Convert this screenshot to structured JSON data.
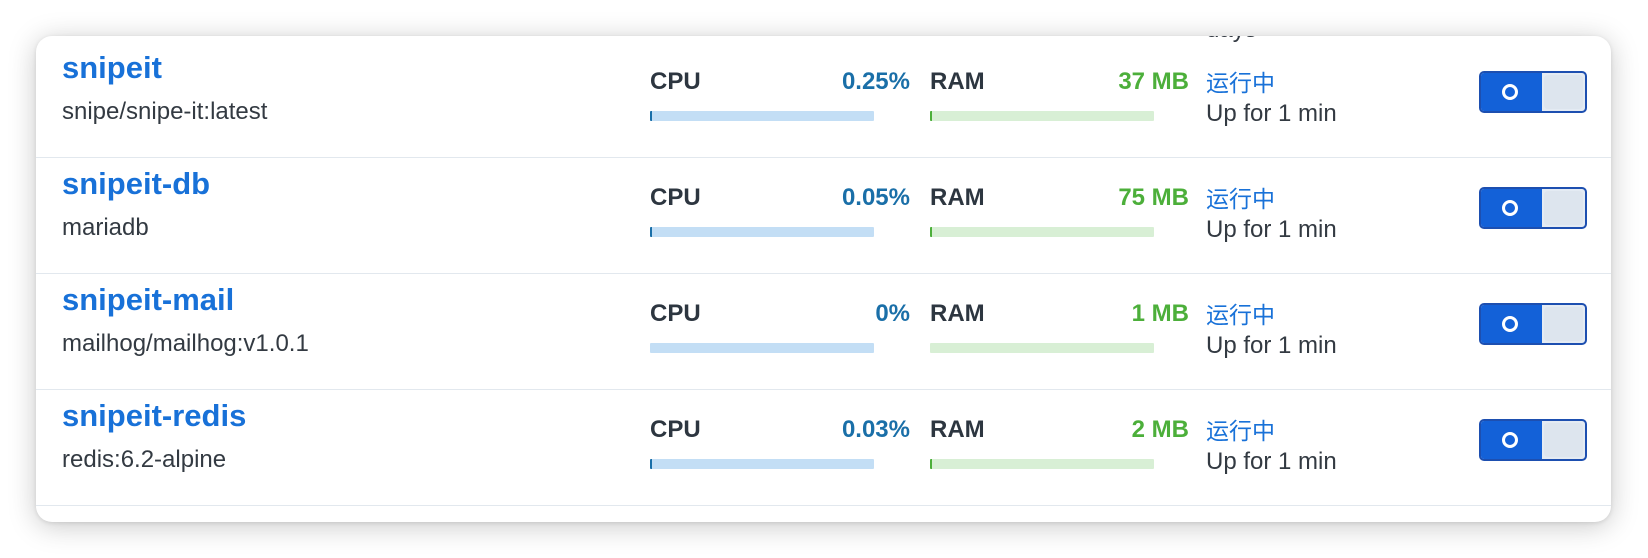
{
  "cut_off_text": "days",
  "containers": [
    {
      "name": "snipeit",
      "image": "snipe/snipe-it:latest",
      "cpu_label": "CPU",
      "cpu_value": "0.25%",
      "cpu_fraction": 0.0025,
      "ram_label": "RAM",
      "ram_value": "37 MB",
      "ram_fraction": 0.005,
      "status": "运行中",
      "uptime": "Up for 1 min",
      "enabled": true
    },
    {
      "name": "snipeit-db",
      "image": "mariadb",
      "cpu_label": "CPU",
      "cpu_value": "0.05%",
      "cpu_fraction": 0.0005,
      "ram_label": "RAM",
      "ram_value": "75 MB",
      "ram_fraction": 0.009,
      "status": "运行中",
      "uptime": "Up for 1 min",
      "enabled": true
    },
    {
      "name": "snipeit-mail",
      "image": "mailhog/mailhog:v1.0.1",
      "cpu_label": "CPU",
      "cpu_value": "0%",
      "cpu_fraction": 0,
      "ram_label": "RAM",
      "ram_value": "1 MB",
      "ram_fraction": 0,
      "status": "运行中",
      "uptime": "Up for 1 min",
      "enabled": true
    },
    {
      "name": "snipeit-redis",
      "image": "redis:6.2-alpine",
      "cpu_label": "CPU",
      "cpu_value": "0.03%",
      "cpu_fraction": 0.0003,
      "ram_label": "RAM",
      "ram_value": "2 MB",
      "ram_fraction": 0.0003,
      "status": "运行中",
      "uptime": "Up for 1 min",
      "enabled": true
    }
  ],
  "colors": {
    "name": "#1871d8",
    "cpu_value": "#1a6fa8",
    "ram_value": "#4caf3a",
    "cpu_track": "#c3def5",
    "ram_track": "#d8efd5",
    "status": "#1871d8",
    "toggle_on": "#1361d8"
  },
  "icons": {
    "toggle": "power-toggle-icon"
  }
}
